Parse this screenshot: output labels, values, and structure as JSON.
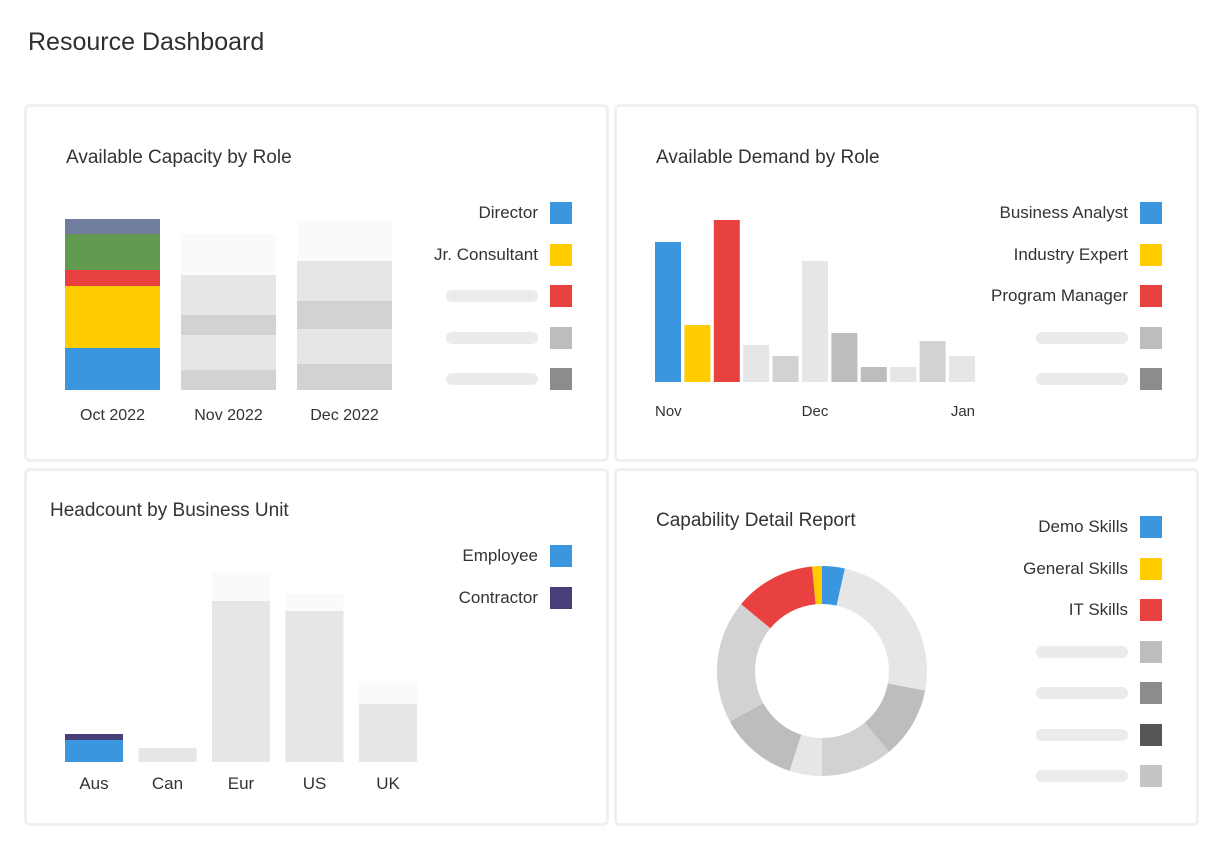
{
  "page": {
    "title": "Resource Dashboard"
  },
  "colors": {
    "blue": "#3b96e0",
    "yellow": "#ffcc00",
    "red": "#e94040",
    "green": "#629b50",
    "slate": "#707d9e",
    "navy": "#473f78",
    "light": "#e8e8e8",
    "mid": "#d2d2d2",
    "gray": "#bdbdbd",
    "dark": "#8c8c8c",
    "darker": "#555555"
  },
  "capacity": {
    "title": "Available Capacity by Role",
    "legend": [
      {
        "label": "Director",
        "color": "#3b96e0"
      },
      {
        "label": "Jr. Consultant",
        "color": "#ffcc00"
      },
      {
        "label": "",
        "color": "#e94040"
      },
      {
        "label": "",
        "color": "#bdbdbd"
      },
      {
        "label": "",
        "color": "#8c8c8c"
      }
    ]
  },
  "demand": {
    "title": "Available Demand by Role",
    "legend": [
      {
        "label": "Business Analyst",
        "color": "#3b96e0"
      },
      {
        "label": "Industry Expert",
        "color": "#ffcc00"
      },
      {
        "label": "Program Manager",
        "color": "#e94040"
      },
      {
        "label": "",
        "color": "#bdbdbd"
      },
      {
        "label": "",
        "color": "#8c8c8c"
      }
    ]
  },
  "headcount": {
    "title": "Headcount by Business Unit",
    "legend": [
      {
        "label": "Employee",
        "color": "#3b96e0"
      },
      {
        "label": "Contractor",
        "color": "#473f78"
      }
    ]
  },
  "capability": {
    "title": "Capability Detail Report",
    "legend": [
      {
        "label": "Demo Skills",
        "color": "#3b96e0"
      },
      {
        "label": "General Skills",
        "color": "#ffcc00"
      },
      {
        "label": "IT Skills",
        "color": "#e94040"
      },
      {
        "label": "",
        "color": "#bdbdbd"
      },
      {
        "label": "",
        "color": "#8c8c8c"
      },
      {
        "label": "",
        "color": "#555555"
      },
      {
        "label": "",
        "color": "#c4c4c4"
      }
    ]
  },
  "chart_data": [
    {
      "type": "bar",
      "stacked": true,
      "title": "Available Capacity by Role",
      "categories": [
        "Oct 2022",
        "Nov 2022",
        "Dec 2022"
      ],
      "series": [
        {
          "name": "Director",
          "color": "#3b96e0",
          "values": [
            42,
            0,
            0
          ]
        },
        {
          "name": "Jr. Consultant",
          "color": "#ffcc00",
          "values": [
            62,
            0,
            0
          ]
        },
        {
          "color": "#e94040",
          "values": [
            16,
            0,
            0
          ]
        },
        {
          "color": "#629b50",
          "values": [
            36,
            0,
            0
          ]
        },
        {
          "color": "#707d9e",
          "values": [
            15,
            0,
            0
          ]
        },
        {
          "color": "#d2d2d2",
          "values": [
            0,
            20,
            26
          ]
        },
        {
          "color": "#e6e6e6",
          "values": [
            0,
            35,
            35
          ]
        },
        {
          "color": "#d2d2d2",
          "values": [
            0,
            20,
            28
          ]
        },
        {
          "color": "#e6e6e6",
          "values": [
            0,
            40,
            40
          ]
        },
        {
          "color": "#fafafa",
          "values": [
            0,
            41,
            41
          ]
        }
      ],
      "ylim": [
        0,
        171
      ]
    },
    {
      "type": "bar",
      "title": "Available Demand by Role",
      "x_tick_labels": [
        {
          "label": "Nov",
          "index": 0
        },
        {
          "label": "Dec",
          "index": 5
        },
        {
          "label": "Jan",
          "index": 10
        }
      ],
      "bars": [
        {
          "value": 140,
          "color": "#3b96e0",
          "series": "Business Analyst"
        },
        {
          "value": 57,
          "color": "#ffcc00",
          "series": "Industry Expert"
        },
        {
          "value": 162,
          "color": "#e94040",
          "series": "Program Manager"
        },
        {
          "value": 37,
          "color": "#e6e6e6"
        },
        {
          "value": 26,
          "color": "#d2d2d2"
        },
        {
          "value": 121,
          "color": "#e6e6e6"
        },
        {
          "value": 49,
          "color": "#bdbdbd"
        },
        {
          "value": 15,
          "color": "#bdbdbd"
        },
        {
          "value": 15,
          "color": "#e6e6e6"
        },
        {
          "value": 41,
          "color": "#d2d2d2"
        },
        {
          "value": 26,
          "color": "#e6e6e6"
        }
      ],
      "ylim": [
        0,
        170
      ]
    },
    {
      "type": "bar",
      "stacked": true,
      "title": "Headcount by Business Unit",
      "categories": [
        "Aus",
        "Can",
        "Eur",
        "US",
        "UK"
      ],
      "series": [
        {
          "name": "Employee",
          "color": "#3b96e0",
          "values": [
            22,
            0,
            0,
            0,
            0
          ]
        },
        {
          "name": "Contractor",
          "color": "#473f78",
          "values": [
            6,
            0,
            0,
            0,
            0
          ]
        },
        {
          "color": "#e6e6e6",
          "values": [
            0,
            14,
            161,
            151,
            58
          ]
        },
        {
          "color": "#fafafa",
          "values": [
            0,
            0,
            28,
            17,
            23
          ]
        }
      ],
      "ylim": [
        0,
        190
      ]
    },
    {
      "type": "pie",
      "donut": true,
      "title": "Capability Detail Report",
      "slices": [
        {
          "label": "Demo Skills",
          "value": 3.5,
          "color": "#3b96e0"
        },
        {
          "label": "",
          "value": 24.5,
          "color": "#e6e6e6"
        },
        {
          "label": "",
          "value": 11,
          "color": "#bdbdbd"
        },
        {
          "label": "",
          "value": 11,
          "color": "#d2d2d2"
        },
        {
          "label": "",
          "value": 5,
          "color": "#e6e6e6"
        },
        {
          "label": "",
          "value": 12,
          "color": "#bdbdbd"
        },
        {
          "label": "",
          "value": 19,
          "color": "#d2d2d2"
        },
        {
          "label": "IT Skills",
          "value": 12.5,
          "color": "#e94040"
        },
        {
          "label": "General Skills",
          "value": 1.5,
          "color": "#ffcc00"
        }
      ]
    }
  ]
}
